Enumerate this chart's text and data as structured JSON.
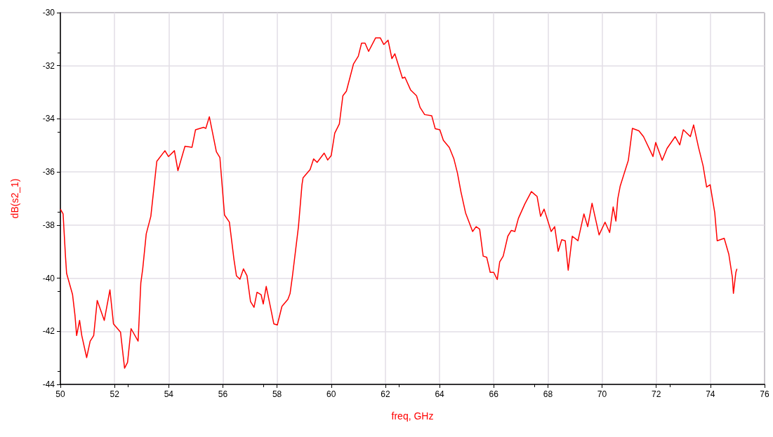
{
  "chart_data": {
    "type": "line",
    "xlabel": "freq, GHz",
    "ylabel": "dB(s2_1)",
    "color": "#ff0000",
    "x": [
      50.0,
      50.1,
      50.19,
      50.23,
      50.45,
      50.54,
      50.6,
      50.71,
      50.79,
      50.97,
      51.1,
      51.23,
      51.36,
      51.62,
      51.83,
      51.96,
      52.22,
      52.37,
      52.48,
      52.61,
      52.87,
      52.97,
      53.04,
      53.17,
      53.34,
      53.56,
      53.86,
      53.99,
      54.21,
      54.34,
      54.6,
      54.86,
      54.99,
      55.29,
      55.37,
      55.5,
      55.76,
      55.89,
      56.06,
      56.24,
      56.41,
      56.5,
      56.63,
      56.76,
      56.89,
      57.02,
      57.15,
      57.26,
      57.41,
      57.49,
      57.6,
      57.75,
      57.88,
      58.01,
      58.18,
      58.4,
      58.48,
      58.57,
      58.79,
      58.92,
      58.96,
      59.22,
      59.35,
      59.48,
      59.74,
      59.87,
      60.0,
      60.13,
      60.3,
      60.43,
      60.56,
      60.82,
      61.0,
      61.12,
      61.25,
      61.38,
      61.64,
      61.81,
      61.94,
      62.1,
      62.24,
      62.35,
      62.63,
      62.72,
      62.93,
      63.15,
      63.28,
      63.45,
      63.71,
      63.84,
      64.01,
      64.14,
      64.36,
      64.53,
      64.66,
      64.79,
      64.96,
      65.22,
      65.35,
      65.48,
      65.61,
      65.74,
      65.87,
      66.0,
      66.13,
      66.22,
      66.35,
      66.52,
      66.65,
      66.78,
      66.91,
      67.15,
      67.39,
      67.6,
      67.73,
      67.86,
      68.12,
      68.25,
      68.38,
      68.51,
      68.64,
      68.75,
      68.9,
      69.11,
      69.33,
      69.47,
      69.63,
      69.89,
      70.11,
      70.28,
      70.41,
      70.51,
      70.58,
      70.67,
      70.97,
      71.12,
      71.36,
      71.53,
      71.88,
      71.98,
      72.22,
      72.4,
      72.7,
      72.87,
      73.0,
      73.26,
      73.38,
      73.56,
      73.73,
      73.86,
      73.99,
      74.16,
      74.25,
      74.51,
      74.68,
      74.81,
      74.85,
      74.94,
      74.98
    ],
    "values": [
      -37.4,
      -37.58,
      -39.21,
      -39.82,
      -40.62,
      -41.41,
      -42.16,
      -41.59,
      -42.16,
      -42.99,
      -42.37,
      -42.16,
      -40.84,
      -41.59,
      -40.44,
      -41.72,
      -42.03,
      -43.39,
      -43.17,
      -41.9,
      -42.37,
      -40.18,
      -39.65,
      -38.33,
      -37.67,
      -35.6,
      -35.2,
      -35.42,
      -35.2,
      -35.95,
      -35.03,
      -35.07,
      -34.41,
      -34.32,
      -34.36,
      -33.92,
      -35.24,
      -35.46,
      -37.62,
      -37.89,
      -39.3,
      -39.91,
      -40.04,
      -39.65,
      -39.91,
      -40.88,
      -41.1,
      -40.53,
      -40.62,
      -40.97,
      -40.31,
      -41.06,
      -41.72,
      -41.76,
      -41.06,
      -40.8,
      -40.58,
      -39.91,
      -38.06,
      -36.48,
      -36.22,
      -35.91,
      -35.51,
      -35.64,
      -35.29,
      -35.55,
      -35.38,
      -34.54,
      -34.19,
      -33.13,
      -32.96,
      -31.94,
      -31.64,
      -31.15,
      -31.15,
      -31.46,
      -30.95,
      -30.95,
      -31.2,
      -31.04,
      -31.73,
      -31.55,
      -32.47,
      -32.43,
      -32.91,
      -33.13,
      -33.57,
      -33.84,
      -33.88,
      -34.37,
      -34.41,
      -34.81,
      -35.08,
      -35.51,
      -36.04,
      -36.75,
      -37.54,
      -38.24,
      -38.06,
      -38.15,
      -39.17,
      -39.21,
      -39.78,
      -39.78,
      -40.05,
      -39.39,
      -39.17,
      -38.42,
      -38.2,
      -38.24,
      -37.75,
      -37.2,
      -36.74,
      -36.92,
      -37.67,
      -37.4,
      -38.24,
      -38.06,
      -38.99,
      -38.55,
      -38.59,
      -39.7,
      -38.42,
      -38.59,
      -37.58,
      -38.06,
      -37.18,
      -38.37,
      -37.89,
      -38.28,
      -37.32,
      -37.85,
      -37.01,
      -36.53,
      -35.56,
      -34.36,
      -34.45,
      -34.67,
      -35.42,
      -34.89,
      -35.56,
      -35.11,
      -34.67,
      -34.98,
      -34.41,
      -34.67,
      -34.23,
      -35.07,
      -35.77,
      -36.57,
      -36.48,
      -37.53,
      -38.59,
      -38.5,
      -39.1,
      -39.96,
      -40.57,
      -39.78,
      -39.65
    ],
    "xlim": [
      50,
      76
    ],
    "xticks": [
      50,
      52,
      54,
      56,
      58,
      60,
      62,
      64,
      66,
      68,
      70,
      72,
      74,
      76
    ],
    "ylim": [
      -44,
      -30
    ],
    "yticks": [
      -44,
      -42,
      -40,
      -38,
      -36,
      -34,
      -32,
      -30
    ],
    "grid": true
  }
}
